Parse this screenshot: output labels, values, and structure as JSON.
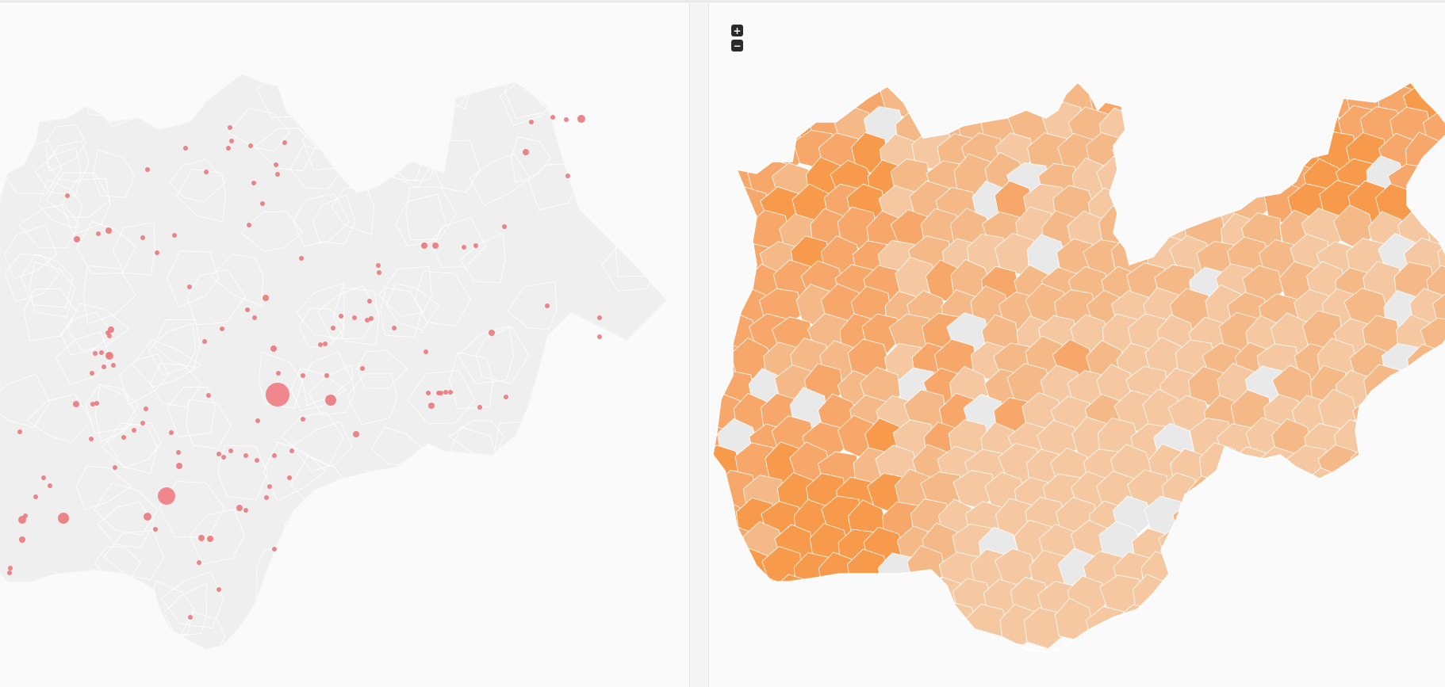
{
  "zoom_controls": {
    "zoom_in_label": "+",
    "zoom_out_label": "−"
  },
  "colors": {
    "background": "#fafafa",
    "region_fill_left": "#efefef",
    "region_stroke": "#ffffff",
    "bubble_fill": "#e9787a",
    "bubble_fill_large": "#ee8187",
    "choropleth_scale": [
      "#f5c8a2",
      "#f5b887",
      "#f6a769",
      "#f79a4b",
      "#f7902f"
    ],
    "no_data_fill": "#e9e9e9"
  },
  "maps": [
    {
      "id": "bubble-map",
      "type": "proportional-symbol"
    },
    {
      "id": "choropleth-map",
      "type": "choropleth"
    }
  ]
}
